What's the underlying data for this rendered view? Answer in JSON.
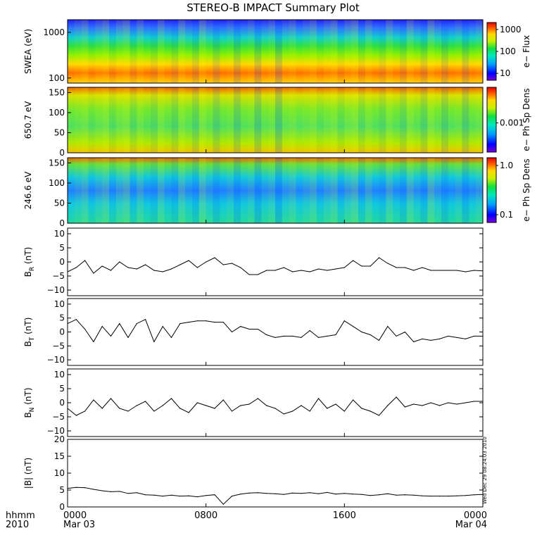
{
  "title": "STEREO-B IMPACT Summary Plot",
  "time_axis": {
    "corner_label_1": "hhmm",
    "corner_label_2": "2010",
    "ticks": [
      {
        "value": "0000",
        "date": "Mar 03"
      },
      {
        "value": "0800",
        "date": ""
      },
      {
        "value": "1600",
        "date": ""
      },
      {
        "value": "0000",
        "date": "Mar 04"
      }
    ],
    "range_hours": [
      0,
      24
    ]
  },
  "timestamp": "Wed Dec 29 08:24:03 2010",
  "colors": {
    "line": "#000000",
    "spectrogram_scale": [
      "#7a00d8",
      "#0000ff",
      "#00a0ff",
      "#00e8c0",
      "#10e040",
      "#c8f000",
      "#ffd800",
      "#ff6000",
      "#e80000"
    ]
  },
  "chart_data": [
    {
      "type": "heatmap",
      "ylabel": "SWEA (eV)",
      "yscale": "log",
      "ylim": [
        90,
        2000
      ],
      "yticks": [
        "1000",
        "100"
      ],
      "colorbar": {
        "label": "e− Flux",
        "scale": "log",
        "ticks": [
          "1000",
          "100",
          "10"
        ]
      },
      "description_rows": [
        {
          "energy_ev": 1500,
          "level": 0.18
        },
        {
          "energy_ev": 800,
          "level": 0.42
        },
        {
          "energy_ev": 400,
          "level": 0.58
        },
        {
          "energy_ev": 200,
          "level": 0.74
        },
        {
          "energy_ev": 110,
          "level": 0.92
        }
      ]
    },
    {
      "type": "heatmap",
      "ylabel": "650.7 eV",
      "ylim": [
        0,
        180
      ],
      "yticks": [
        "150",
        "100",
        "50",
        "0"
      ],
      "colorbar": {
        "label": "e− Ph Sp Dens",
        "scale": "log",
        "ticks": [
          "0.001"
        ]
      }
    },
    {
      "type": "heatmap",
      "ylabel": "246.6 eV",
      "ylim": [
        0,
        180
      ],
      "yticks": [
        "150",
        "100",
        "50",
        "0"
      ],
      "colorbar": {
        "label": "e− Ph Sp Dens",
        "scale": "log",
        "ticks": [
          "1.0",
          "0.1"
        ]
      }
    },
    {
      "type": "line",
      "ylabel": "B",
      "ylabel_sub": "R",
      "ylabel_unit": "(nT)",
      "ylim": [
        -12,
        12
      ],
      "yticks": [
        "10",
        "5",
        "0",
        "−5",
        "−10"
      ],
      "x": [
        0,
        0.5,
        1,
        1.5,
        2,
        2.5,
        3,
        3.5,
        4,
        4.5,
        5,
        5.5,
        6,
        6.5,
        7,
        7.5,
        8,
        8.5,
        9,
        9.5,
        10,
        10.5,
        11,
        11.5,
        12,
        12.5,
        13,
        13.5,
        14,
        14.5,
        15,
        15.5,
        16,
        16.5,
        17,
        17.5,
        18,
        18.5,
        19,
        19.5,
        20,
        20.5,
        21,
        21.5,
        22,
        22.5,
        23,
        23.5,
        24
      ],
      "y": [
        -3.5,
        -2,
        0.5,
        -4,
        -1.5,
        -3,
        0,
        -2,
        -2.5,
        -1,
        -3,
        -3.5,
        -2.5,
        -1,
        0.5,
        -2,
        0,
        1.5,
        -1,
        -0.5,
        -2,
        -4.5,
        -4.5,
        -3,
        -3,
        -2,
        -3.5,
        -3,
        -3.5,
        -2.5,
        -3,
        -2.5,
        -2,
        0.5,
        -1.5,
        -1.5,
        1.5,
        -0.5,
        -2,
        -2,
        -3,
        -2,
        -3,
        -3,
        -3,
        -3,
        -3.5,
        -3,
        -3.2
      ]
    },
    {
      "type": "line",
      "ylabel": "B",
      "ylabel_sub": "T",
      "ylabel_unit": "(nT)",
      "ylim": [
        -12,
        12
      ],
      "yticks": [
        "10",
        "5",
        "0",
        "−5",
        "−10"
      ],
      "x": [
        0,
        0.5,
        1,
        1.5,
        2,
        2.5,
        3,
        3.5,
        4,
        4.5,
        5,
        5.5,
        6,
        6.5,
        7,
        7.5,
        8,
        8.5,
        9,
        9.5,
        10,
        10.5,
        11,
        11.5,
        12,
        12.5,
        13,
        13.5,
        14,
        14.5,
        15,
        15.5,
        16,
        16.5,
        17,
        17.5,
        18,
        18.5,
        19,
        19.5,
        20,
        20.5,
        21,
        21.5,
        22,
        22.5,
        23,
        23.5,
        24
      ],
      "y": [
        3,
        4.5,
        1,
        -3.5,
        2,
        -1.5,
        3,
        -2,
        3,
        4.5,
        -3.5,
        2,
        -2,
        3,
        3.5,
        4,
        4,
        3.5,
        3.5,
        0,
        2,
        1,
        1,
        -1,
        -2,
        -1.5,
        -1.5,
        -2,
        0.5,
        -2,
        -1.5,
        -1,
        4,
        2,
        0,
        -1,
        -3,
        2,
        -1.5,
        0,
        -3.5,
        -2.5,
        -3,
        -2.5,
        -1.5,
        -2,
        -2.5,
        -1.5,
        -1.5
      ]
    },
    {
      "type": "line",
      "ylabel": "B",
      "ylabel_sub": "N",
      "ylabel_unit": "(nT)",
      "ylim": [
        -12,
        12
      ],
      "yticks": [
        "10",
        "5",
        "0",
        "−5",
        "−10"
      ],
      "x": [
        0,
        0.5,
        1,
        1.5,
        2,
        2.5,
        3,
        3.5,
        4,
        4.5,
        5,
        5.5,
        6,
        6.5,
        7,
        7.5,
        8,
        8.5,
        9,
        9.5,
        10,
        10.5,
        11,
        11.5,
        12,
        12.5,
        13,
        13.5,
        14,
        14.5,
        15,
        15.5,
        16,
        16.5,
        17,
        17.5,
        18,
        18.5,
        19,
        19.5,
        20,
        20.5,
        21,
        21.5,
        22,
        22.5,
        23,
        23.5,
        24
      ],
      "y": [
        -2,
        -4.5,
        -3,
        1,
        -2,
        1.5,
        -2,
        -3,
        -1,
        0.5,
        -3,
        -1,
        1.5,
        -2,
        -3.5,
        0,
        -1,
        -2,
        1,
        -3,
        -1,
        -0.5,
        1.5,
        -1,
        -2,
        -4,
        -3,
        -1,
        -3,
        1.5,
        -2,
        -0.5,
        -3,
        1,
        -2,
        -3,
        -4.5,
        -1,
        2,
        -1.5,
        -0.5,
        -1,
        0,
        -1,
        0,
        -0.5,
        0,
        0.5,
        0.5
      ]
    },
    {
      "type": "line",
      "ylabel": "|B| (nT)",
      "ylim": [
        0,
        20
      ],
      "yticks": [
        "20",
        "15",
        "10",
        "5",
        "0"
      ],
      "x": [
        0,
        0.5,
        1,
        1.5,
        2,
        2.5,
        3,
        3.5,
        4,
        4.5,
        5,
        5.5,
        6,
        6.5,
        7,
        7.5,
        8,
        8.5,
        9,
        9.5,
        10,
        10.5,
        11,
        11.5,
        12,
        12.5,
        13,
        13.5,
        14,
        14.5,
        15,
        15.5,
        16,
        16.5,
        17,
        17.5,
        18,
        18.5,
        19,
        19.5,
        20,
        20.5,
        21,
        21.5,
        22,
        22.5,
        23,
        23.5,
        24
      ],
      "y": [
        5.5,
        5.8,
        5.7,
        5.2,
        4.8,
        4.5,
        4.6,
        4,
        4.2,
        3.6,
        3.5,
        3.2,
        3.5,
        3.2,
        3.3,
        3.0,
        3.4,
        3.6,
        0.8,
        3.2,
        3.8,
        4.1,
        4.2,
        4.0,
        3.9,
        3.7,
        4.1,
        4.0,
        4.2,
        3.9,
        4.3,
        3.8,
        4.0,
        3.8,
        3.7,
        3.4,
        3.6,
        3.9,
        3.5,
        3.6,
        3.5,
        3.3,
        3.2,
        3.2,
        3.2,
        3.3,
        3.4,
        3.6,
        3.7
      ]
    }
  ]
}
